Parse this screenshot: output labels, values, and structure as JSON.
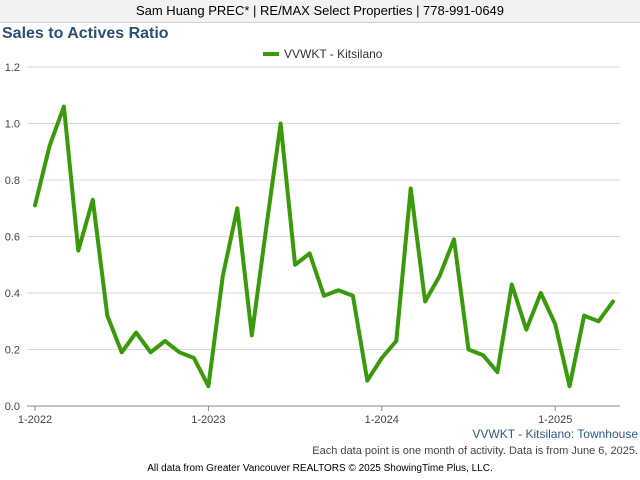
{
  "header": {
    "text": "Sam Huang PREC* | RE/MAX Select Properties | 778-991-0649"
  },
  "chart_data": {
    "type": "line",
    "title": "Sales to Actives Ratio",
    "legend": {
      "placement": "top-center"
    },
    "grid": true,
    "line_color": "#3a9a0c",
    "x": [
      "2022-01",
      "2022-02",
      "2022-03",
      "2022-04",
      "2022-05",
      "2022-06",
      "2022-07",
      "2022-08",
      "2022-09",
      "2022-10",
      "2022-11",
      "2022-12",
      "2023-01",
      "2023-02",
      "2023-03",
      "2023-04",
      "2023-05",
      "2023-06",
      "2023-07",
      "2023-08",
      "2023-09",
      "2023-10",
      "2023-11",
      "2023-12",
      "2024-01",
      "2024-02",
      "2024-03",
      "2024-04",
      "2024-05",
      "2024-06",
      "2024-07",
      "2024-08",
      "2024-09",
      "2024-10",
      "2024-11",
      "2024-12",
      "2025-01",
      "2025-02",
      "2025-03",
      "2025-04",
      "2025-05"
    ],
    "x_tick_labels": [
      "1-2022",
      "1-2023",
      "1-2024",
      "1-2025"
    ],
    "y_ticks": [
      "0.0",
      "0.2",
      "0.4",
      "0.6",
      "0.8",
      "1.0",
      "1.2"
    ],
    "ylim": [
      0,
      1.2
    ],
    "series": [
      {
        "name": "VVWKT - Kitsilano",
        "values": [
          0.71,
          0.92,
          1.06,
          0.55,
          0.73,
          0.32,
          0.19,
          0.26,
          0.19,
          0.23,
          0.19,
          0.17,
          0.07,
          0.46,
          0.7,
          0.25,
          0.63,
          1.0,
          0.5,
          0.54,
          0.39,
          0.41,
          0.39,
          0.09,
          0.17,
          0.23,
          0.77,
          0.37,
          0.46,
          0.59,
          0.2,
          0.18,
          0.12,
          0.43,
          0.27,
          0.4,
          0.29,
          0.07,
          0.32,
          0.3,
          0.37
        ]
      }
    ]
  },
  "caption": "VVWKT - Kitsilano: Townhouse",
  "note": "Each data point is one month of activity. Data is from June 6, 2025.",
  "footer": "All data from Greater Vancouver REALTORS © 2025 ShowingTime Plus, LLC."
}
